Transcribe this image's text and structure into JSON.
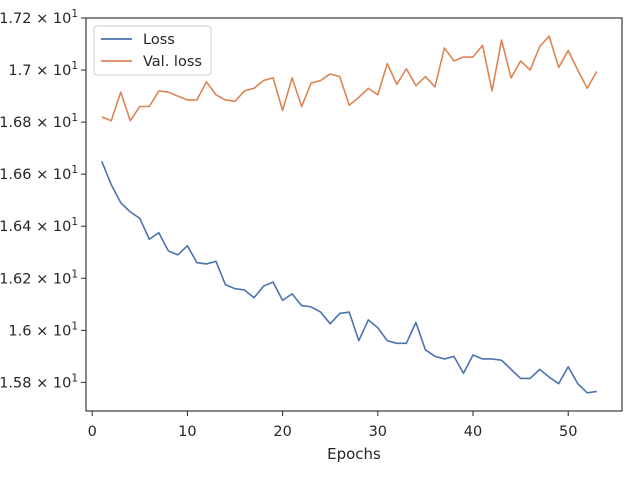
{
  "chart_data": {
    "type": "line",
    "xlabel": "Epochs",
    "ylabel": "",
    "xlim": [
      -0.65,
      55.65
    ],
    "ylim": [
      15.69,
      17.2
    ],
    "x_ticks": [
      0,
      10,
      20,
      30,
      40,
      50
    ],
    "y_ticks": [
      {
        "value": 15.8,
        "mantissa": "1.58",
        "exp": "1"
      },
      {
        "value": 16.0,
        "mantissa": "1.6",
        "exp": "1"
      },
      {
        "value": 16.2,
        "mantissa": "1.62",
        "exp": "1"
      },
      {
        "value": 16.4,
        "mantissa": "1.64",
        "exp": "1"
      },
      {
        "value": 16.6,
        "mantissa": "1.66",
        "exp": "1"
      },
      {
        "value": 16.8,
        "mantissa": "1.68",
        "exp": "1"
      },
      {
        "value": 17.0,
        "mantissa": "1.7",
        "exp": "1"
      },
      {
        "value": 17.2,
        "mantissa": "1.72",
        "exp": "1"
      }
    ],
    "legend_position": "top-left",
    "series": [
      {
        "name": "Loss",
        "color": "#4c72b0",
        "x": [
          1,
          2,
          3,
          4,
          5,
          6,
          7,
          8,
          9,
          10,
          11,
          12,
          13,
          14,
          15,
          16,
          17,
          18,
          19,
          20,
          21,
          22,
          23,
          24,
          25,
          26,
          27,
          28,
          29,
          30,
          31,
          32,
          33,
          34,
          35,
          36,
          37,
          38,
          39,
          40,
          41,
          42,
          43,
          44,
          45,
          46,
          47,
          48,
          49,
          50,
          51,
          52,
          53
        ],
        "values": [
          16.65,
          16.56,
          16.49,
          16.455,
          16.43,
          16.35,
          16.375,
          16.305,
          16.29,
          16.325,
          16.26,
          16.255,
          16.265,
          16.175,
          16.16,
          16.155,
          16.125,
          16.17,
          16.185,
          16.115,
          16.14,
          16.095,
          16.09,
          16.07,
          16.025,
          16.065,
          16.07,
          15.96,
          16.04,
          16.01,
          15.96,
          15.95,
          15.95,
          16.03,
          15.925,
          15.9,
          15.89,
          15.9,
          15.835,
          15.905,
          15.89,
          15.89,
          15.885,
          15.85,
          15.815,
          15.815,
          15.85,
          15.82,
          15.795,
          15.86,
          15.795,
          15.76,
          15.765
        ]
      },
      {
        "name": "Val. loss",
        "color": "#dd8452",
        "x": [
          1,
          2,
          3,
          4,
          5,
          6,
          7,
          8,
          9,
          10,
          11,
          12,
          13,
          14,
          15,
          16,
          17,
          18,
          19,
          20,
          21,
          22,
          23,
          24,
          25,
          26,
          27,
          28,
          29,
          30,
          31,
          32,
          33,
          34,
          35,
          36,
          37,
          38,
          39,
          40,
          41,
          42,
          43,
          44,
          45,
          46,
          47,
          48,
          49,
          50,
          51,
          52,
          53
        ],
        "values": [
          16.82,
          16.805,
          16.915,
          16.805,
          16.86,
          16.86,
          16.92,
          16.915,
          16.9,
          16.885,
          16.885,
          16.955,
          16.905,
          16.885,
          16.88,
          16.92,
          16.93,
          16.96,
          16.97,
          16.845,
          16.97,
          16.86,
          16.95,
          16.96,
          16.985,
          16.975,
          16.865,
          16.895,
          16.93,
          16.905,
          17.025,
          16.945,
          17.005,
          16.94,
          16.975,
          16.935,
          17.085,
          17.035,
          17.05,
          17.05,
          17.095,
          16.92,
          17.115,
          16.97,
          17.035,
          17.0,
          17.09,
          17.13,
          17.01,
          17.075,
          17.0,
          16.93,
          16.995
        ]
      }
    ]
  }
}
